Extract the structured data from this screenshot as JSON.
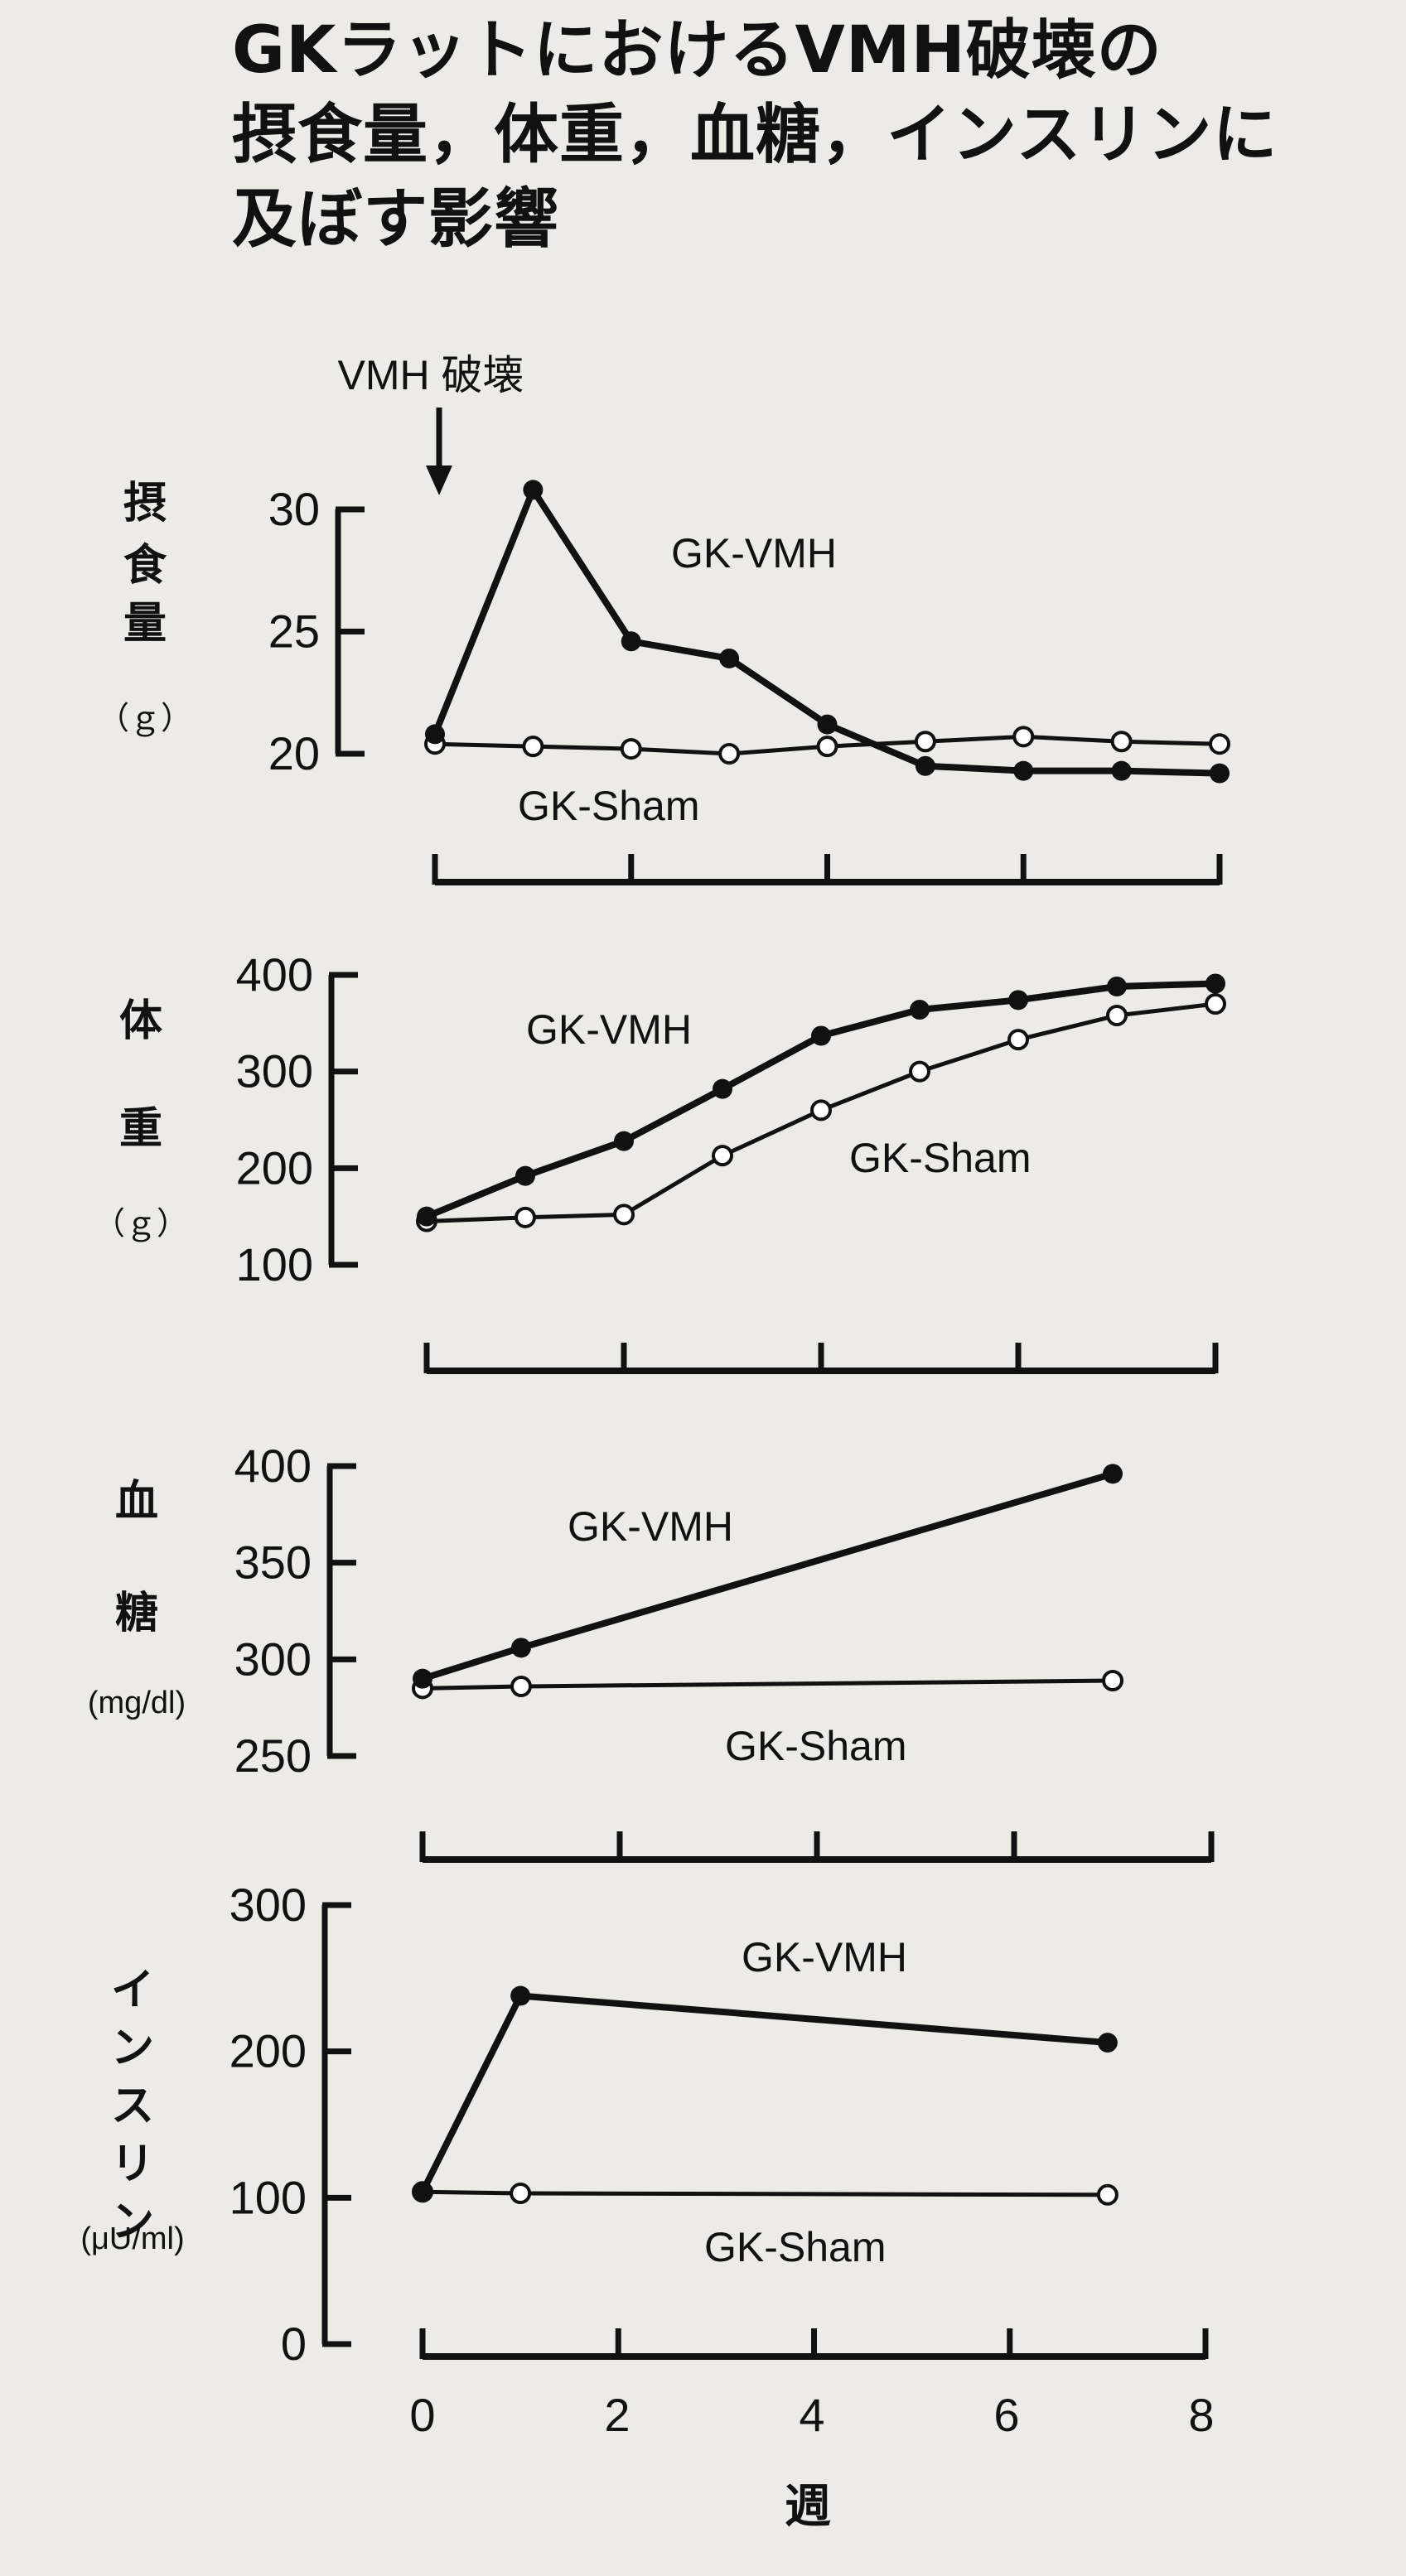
{
  "title": {
    "line1": "GKラットにおけるVMH破壊の",
    "line2": "摂食量，体重，血糖，インスリンに",
    "line3": "及ぼす影響"
  },
  "annotation": "VMH 破壊",
  "x_axis": {
    "ticks": [
      "0",
      "2",
      "4",
      "6",
      "8"
    ],
    "title": "週"
  },
  "colors": {
    "ink": "#111111",
    "paper": "#ecebe8",
    "open_marker": "#ffffff"
  },
  "chart_data": [
    {
      "type": "line",
      "ylabel_chars": [
        "摂",
        "食",
        "量"
      ],
      "unit": "（ｇ）",
      "yticks": [
        "30",
        "25",
        "20"
      ],
      "ylim": [
        20,
        30
      ],
      "xlim": [
        0,
        8
      ],
      "series": [
        {
          "name": "GK-VMH",
          "marker": "filled",
          "x": [
            0,
            1,
            2,
            3,
            4,
            5,
            6,
            7,
            8
          ],
          "y": [
            20.8,
            30.8,
            24.6,
            23.9,
            21.2,
            19.5,
            19.3,
            19.3,
            19.2
          ]
        },
        {
          "name": "GK-Sham",
          "marker": "open",
          "x": [
            0,
            1,
            2,
            3,
            4,
            5,
            6,
            7,
            8
          ],
          "y": [
            20.4,
            20.3,
            20.2,
            20.0,
            20.3,
            20.5,
            20.7,
            20.5,
            20.4
          ]
        }
      ]
    },
    {
      "type": "line",
      "ylabel_chars": [
        "体",
        "重"
      ],
      "unit": "（ｇ）",
      "yticks": [
        "400",
        "300",
        "200",
        "100"
      ],
      "ylim": [
        100,
        400
      ],
      "xlim": [
        0,
        8
      ],
      "series": [
        {
          "name": "GK-VMH",
          "marker": "filled",
          "x": [
            0,
            1,
            2,
            3,
            4,
            5,
            6,
            7,
            8
          ],
          "y": [
            150,
            192,
            228,
            282,
            337,
            364,
            374,
            388,
            391
          ]
        },
        {
          "name": "GK-Sham",
          "marker": "open",
          "x": [
            0,
            1,
            2,
            3,
            4,
            5,
            6,
            7,
            8
          ],
          "y": [
            145,
            149,
            152,
            213,
            260,
            300,
            333,
            358,
            370
          ]
        }
      ]
    },
    {
      "type": "line",
      "ylabel_chars": [
        "血",
        "糖"
      ],
      "unit": "(mg/dl)",
      "yticks": [
        "400",
        "350",
        "300",
        "250"
      ],
      "ylim": [
        250,
        400
      ],
      "xlim": [
        0,
        8
      ],
      "series": [
        {
          "name": "GK-VMH",
          "marker": "filled",
          "x": [
            0,
            1,
            7
          ],
          "y": [
            290,
            306,
            396
          ]
        },
        {
          "name": "GK-Sham",
          "marker": "open",
          "x": [
            0,
            1,
            7
          ],
          "y": [
            285,
            286,
            289
          ]
        }
      ]
    },
    {
      "type": "line",
      "ylabel_chars": [
        "イ",
        "ン",
        "ス",
        "リ",
        "ン"
      ],
      "unit": "(μU/ml)",
      "yticks": [
        "300",
        "200",
        "100",
        "0"
      ],
      "ylim": [
        0,
        300
      ],
      "xlim": [
        0,
        8
      ],
      "series": [
        {
          "name": "GK-VMH",
          "marker": "filled",
          "x": [
            0,
            1,
            7
          ],
          "y": [
            104,
            238,
            206
          ]
        },
        {
          "name": "GK-Sham",
          "marker": "open",
          "x": [
            0,
            1,
            7
          ],
          "y": [
            104,
            103,
            102
          ]
        }
      ]
    }
  ]
}
